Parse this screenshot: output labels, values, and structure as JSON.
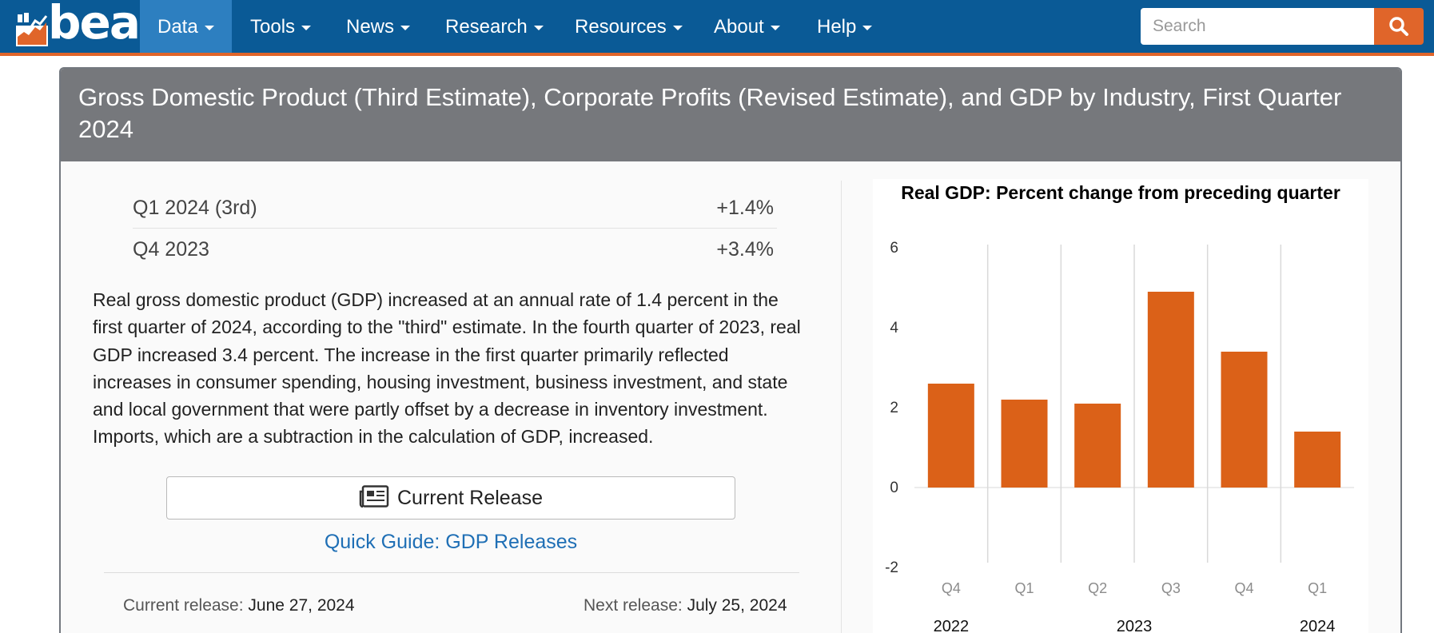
{
  "nav": {
    "brand": "bea",
    "items": [
      {
        "label": "Data"
      },
      {
        "label": "Tools"
      },
      {
        "label": "News"
      },
      {
        "label": "Research"
      },
      {
        "label": "Resources"
      },
      {
        "label": "About"
      },
      {
        "label": "Help"
      }
    ],
    "search_placeholder": "Search"
  },
  "release": {
    "title": "Gross Domestic Product (Third Estimate), Corporate Profits (Revised Estimate), and GDP by Industry, First Quarter 2024",
    "summary": [
      {
        "label": "Q1 2024 (3rd)",
        "value": "+1.4%"
      },
      {
        "label": "Q4 2023",
        "value": "+3.4%"
      }
    ],
    "description": "Real gross domestic product (GDP) increased at an annual rate of 1.4 percent in the first quarter of 2024, according to the \"third\" estimate. In the fourth quarter of 2023, real GDP increased 3.4 percent. The increase in the first quarter primarily reflected increases in consumer spending, housing investment, business investment, and state and local government that were partly offset by a decrease in inventory investment. Imports, which are a subtraction in the calculation of GDP, increased.",
    "current_release_button": "Current Release",
    "quick_guide_link": "Quick Guide: GDP Releases",
    "current_release_label": "Current release:",
    "current_release_date": "June 27, 2024",
    "next_release_label": "Next release:",
    "next_release_date": "July 25, 2024"
  },
  "colors": {
    "nav_bg": "#0a5a96",
    "accent": "#e0652a",
    "header_gray": "#76787c",
    "bar": "#db6118",
    "link": "#1f6fb5"
  },
  "chart_data": {
    "type": "bar",
    "title": "Real GDP:  Percent change from preceding quarter",
    "categories": [
      "Q4",
      "Q1",
      "Q2",
      "Q3",
      "Q4",
      "Q1"
    ],
    "years": [
      {
        "label": "2022",
        "span": [
          0,
          0
        ]
      },
      {
        "label": "2023",
        "span": [
          1,
          4
        ]
      },
      {
        "label": "2024",
        "span": [
          5,
          5
        ]
      }
    ],
    "values": [
      2.6,
      2.2,
      2.1,
      4.9,
      3.4,
      1.4
    ],
    "ylim": [
      -2,
      6
    ],
    "yticks": [
      "6",
      "4",
      "2",
      "0",
      "-2"
    ],
    "grid": "vertical category separators"
  }
}
